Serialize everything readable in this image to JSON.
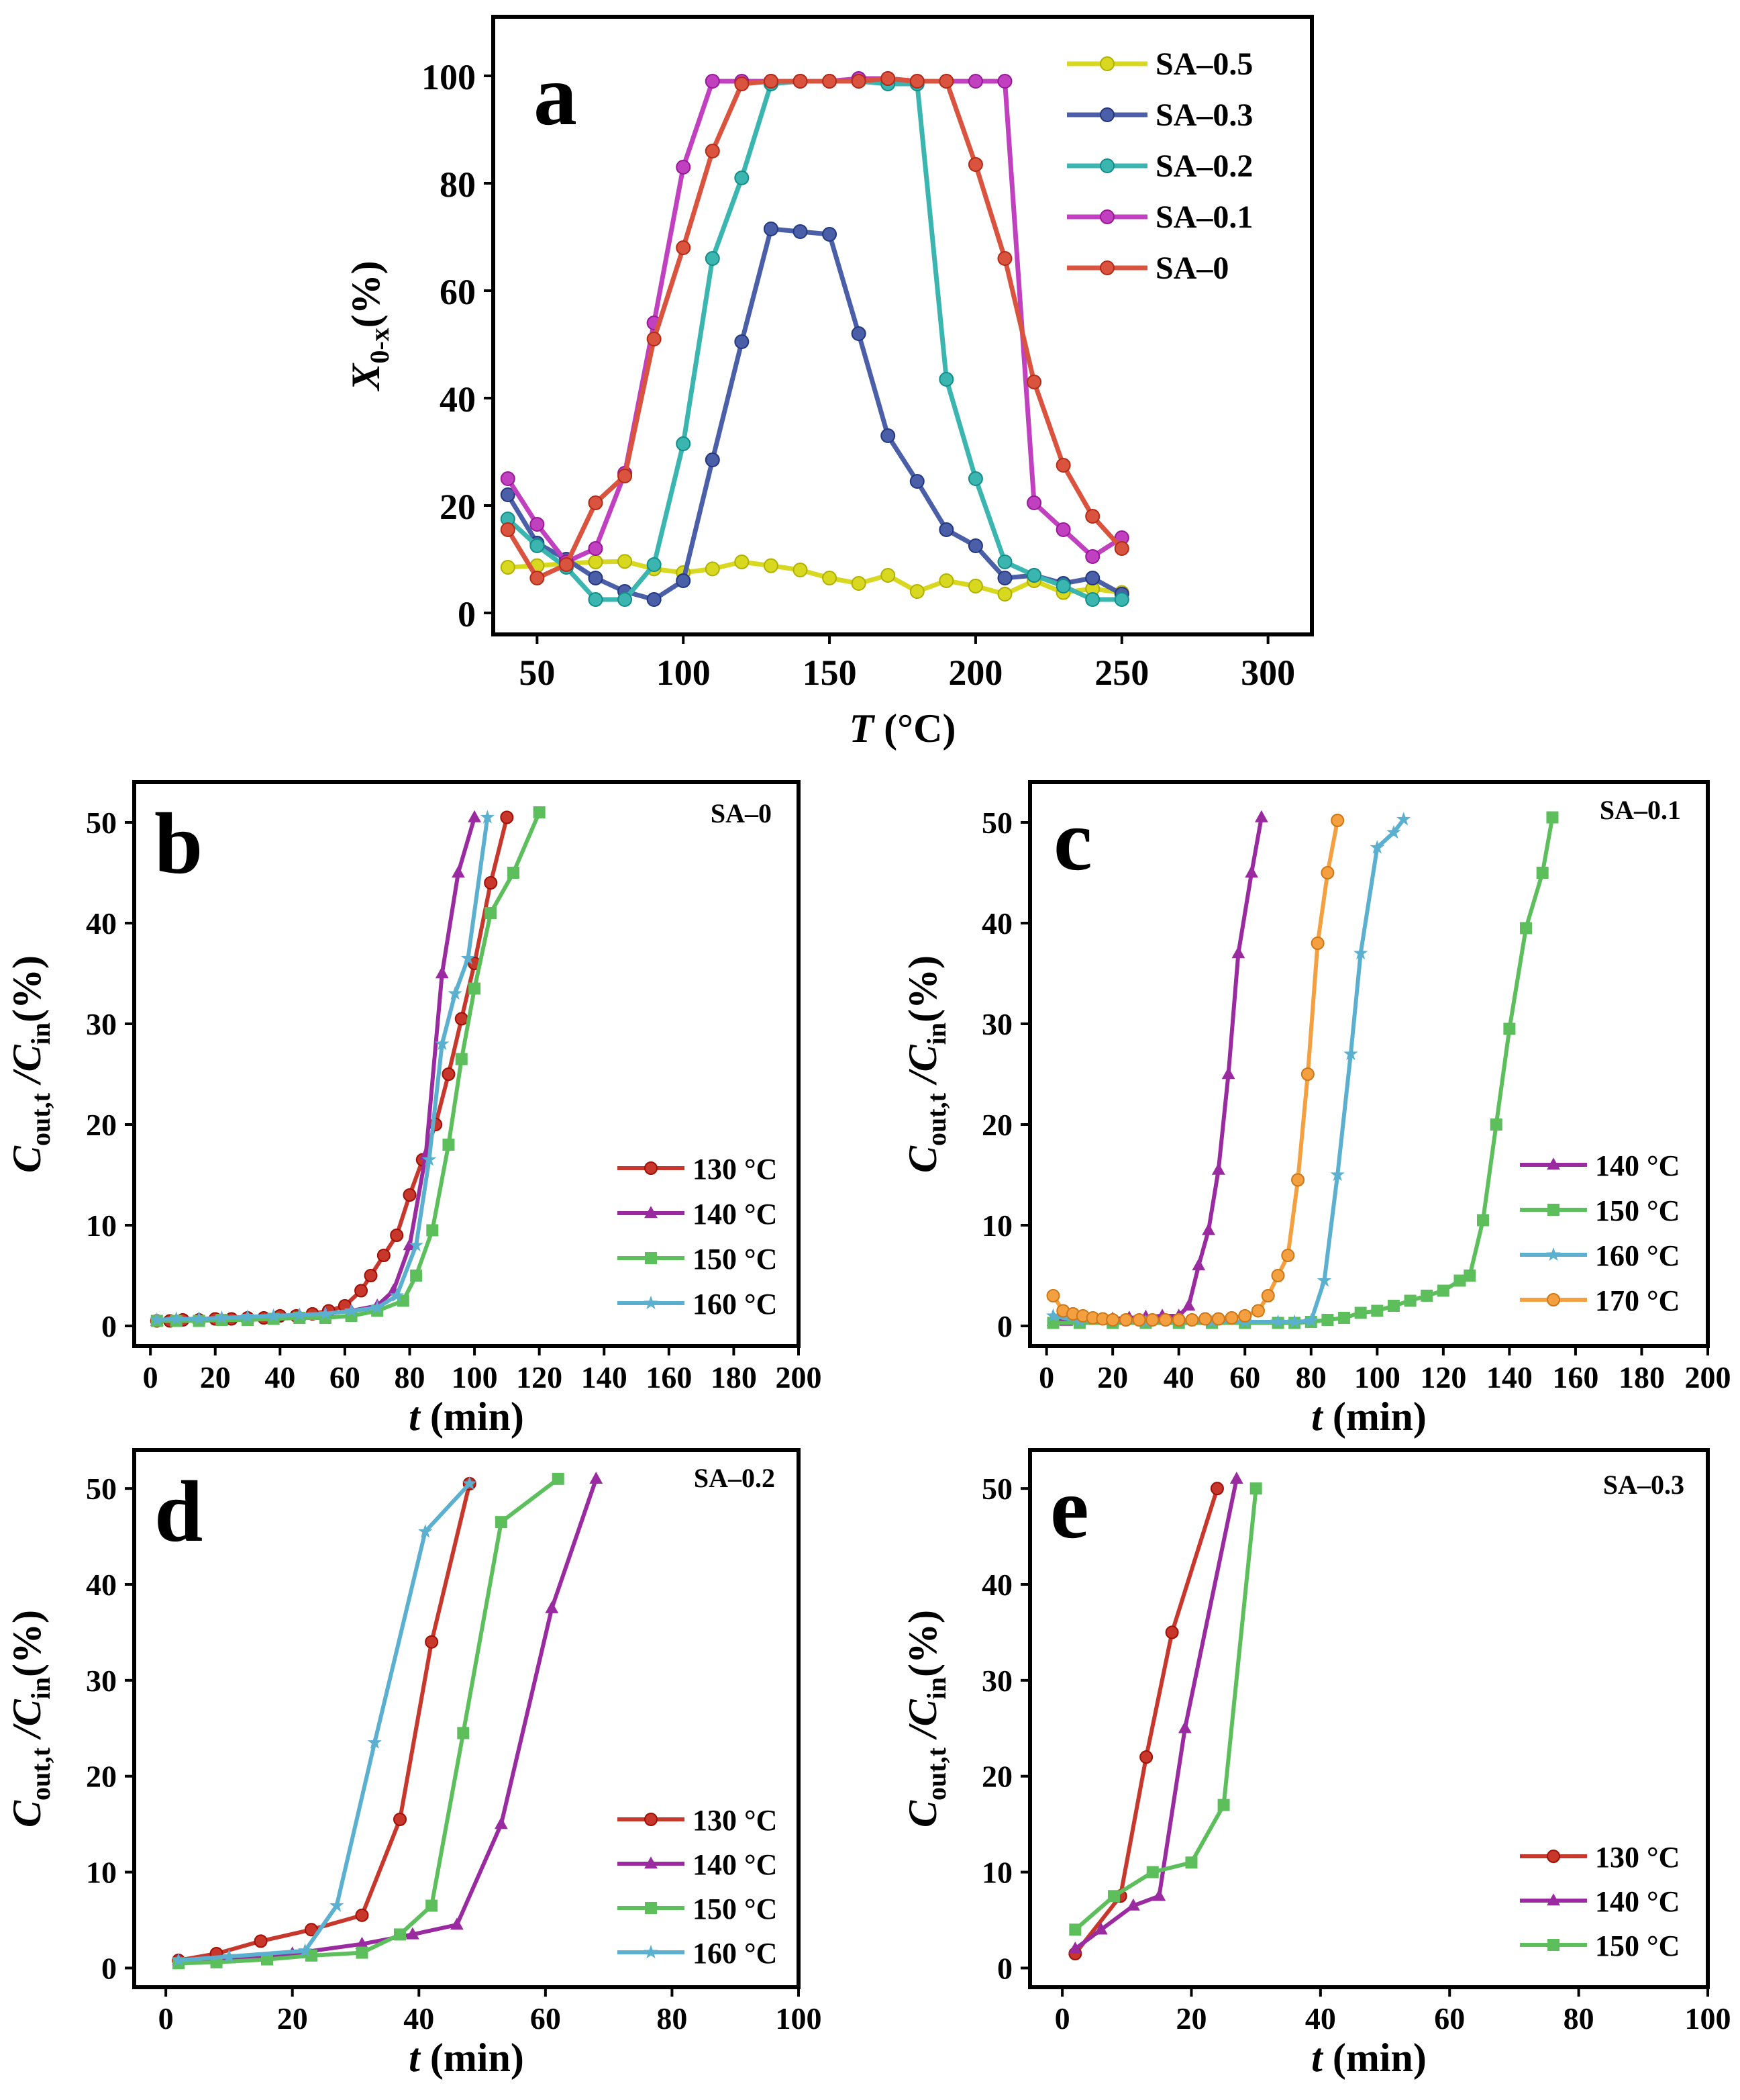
{
  "chart_data": [
    {
      "id": "a",
      "type": "line",
      "panel_letter": "a",
      "tag": "",
      "xlabel_italic": "T",
      "xlabel_rest": " (°C)",
      "ylabel_main": "X",
      "ylabel_sub": "0-x",
      "ylabel_rest": "(%)",
      "xlim": [
        35,
        315
      ],
      "ylim": [
        -4,
        111
      ],
      "xticks": [
        50,
        100,
        150,
        200,
        250,
        300
      ],
      "yticks": [
        0,
        20,
        40,
        60,
        80,
        100
      ],
      "legend_position": "top-right",
      "series": [
        {
          "name": "SA–0.5",
          "color": "#d8d820",
          "marker": "circle",
          "x": [
            40,
            50,
            60,
            70,
            80,
            90,
            100,
            110,
            120,
            130,
            140,
            150,
            160,
            170,
            180,
            190,
            200,
            210,
            220,
            230,
            240,
            250
          ],
          "y": [
            8.5,
            8.8,
            9.2,
            9.5,
            9.6,
            8.2,
            7.5,
            8.2,
            9.5,
            8.8,
            8.0,
            6.5,
            5.5,
            7.0,
            4.0,
            6.0,
            5.0,
            3.5,
            6.0,
            3.8,
            4.5,
            3.8
          ]
        },
        {
          "name": "SA–0.3",
          "color": "#4a5fa8",
          "marker": "circle",
          "x": [
            40,
            50,
            60,
            70,
            80,
            90,
            100,
            110,
            120,
            130,
            140,
            150,
            160,
            170,
            180,
            190,
            200,
            210,
            220,
            230,
            240,
            250
          ],
          "y": [
            22,
            13,
            10,
            6.5,
            4.0,
            2.5,
            6.0,
            28.5,
            50.5,
            71.5,
            71.0,
            70.5,
            52,
            33,
            24.5,
            15.5,
            12.5,
            6.5,
            7.0,
            5.5,
            6.5,
            3.5
          ]
        },
        {
          "name": "SA–0.2",
          "color": "#3ab5b0",
          "marker": "circle",
          "x": [
            40,
            50,
            60,
            70,
            80,
            90,
            100,
            110,
            120,
            130,
            140,
            150,
            160,
            170,
            180,
            190,
            200,
            210,
            220,
            230,
            240,
            250
          ],
          "y": [
            17.5,
            12.5,
            8.5,
            2.5,
            2.5,
            9.0,
            31.5,
            66,
            81,
            98.5,
            99,
            99,
            99,
            98.5,
            98.5,
            43.5,
            25,
            9.5,
            7.0,
            5.0,
            2.5,
            2.5
          ]
        },
        {
          "name": "SA–0.1",
          "color": "#c040c0",
          "marker": "circle",
          "x": [
            40,
            50,
            60,
            70,
            80,
            90,
            100,
            110,
            120,
            130,
            140,
            150,
            160,
            170,
            180,
            190,
            200,
            210,
            220,
            230,
            240,
            250
          ],
          "y": [
            25,
            16.5,
            9.5,
            12,
            26,
            54,
            83,
            99,
            99,
            99,
            99,
            99,
            99.5,
            99.5,
            99,
            99,
            99,
            99,
            20.5,
            15.5,
            10.5,
            14
          ]
        },
        {
          "name": "SA–0",
          "color": "#d9533f",
          "marker": "circle",
          "x": [
            40,
            50,
            60,
            70,
            80,
            90,
            100,
            110,
            120,
            130,
            140,
            150,
            160,
            170,
            180,
            190,
            200,
            210,
            220,
            230,
            240,
            250
          ],
          "y": [
            15.5,
            6.5,
            9.0,
            20.5,
            25.5,
            51,
            68,
            86,
            98.5,
            99,
            99,
            99,
            99,
            99.5,
            99,
            99,
            83.5,
            66,
            43,
            27.5,
            18,
            12
          ]
        }
      ]
    },
    {
      "id": "b",
      "type": "line",
      "panel_letter": "b",
      "tag": "SA–0",
      "xlabel_italic": "t",
      "xlabel_rest": " (min)",
      "ylabel_main": "C",
      "ylabel_sub": "out,t",
      "ylabel_mid": " /C",
      "ylabel_sub2": "in",
      "ylabel_rest": "(%)",
      "xlim": [
        -5,
        200
      ],
      "ylim": [
        -2,
        54
      ],
      "xticks": [
        0,
        20,
        40,
        60,
        80,
        100,
        120,
        140,
        160,
        180,
        200
      ],
      "yticks": [
        0,
        10,
        20,
        30,
        40,
        50
      ],
      "legend_position": "center-right",
      "series": [
        {
          "name": "130 °C",
          "color": "#c8372c",
          "marker": "circle",
          "x": [
            2,
            6,
            10,
            15,
            20,
            25,
            30,
            35,
            40,
            45,
            50,
            55,
            60,
            65,
            68,
            72,
            76,
            80,
            84,
            88,
            92,
            96,
            100,
            105,
            110
          ],
          "y": [
            0.5,
            0.5,
            0.6,
            0.6,
            0.7,
            0.7,
            0.8,
            0.8,
            1.0,
            1.0,
            1.2,
            1.5,
            2.0,
            3.5,
            5.0,
            7.0,
            9.0,
            13,
            16.5,
            20,
            25,
            30.5,
            36,
            44,
            50.5
          ]
        },
        {
          "name": "140 °C",
          "color": "#9a2aa0",
          "marker": "triangle",
          "x": [
            2,
            8,
            15,
            22,
            30,
            38,
            46,
            54,
            62,
            70,
            75,
            80,
            85,
            90,
            95,
            100
          ],
          "y": [
            0.5,
            0.6,
            0.7,
            0.7,
            0.8,
            0.9,
            1.0,
            1.2,
            1.5,
            2.0,
            3.5,
            8.0,
            17,
            35,
            45,
            50.5
          ]
        },
        {
          "name": "150 °C",
          "color": "#5cbf5c",
          "marker": "square",
          "x": [
            2,
            8,
            15,
            22,
            30,
            38,
            46,
            54,
            62,
            70,
            78,
            82,
            87,
            92,
            96,
            100,
            105,
            112,
            120
          ],
          "y": [
            0.5,
            0.5,
            0.5,
            0.6,
            0.6,
            0.7,
            0.8,
            0.8,
            1.0,
            1.5,
            2.5,
            5.0,
            9.5,
            18,
            26.5,
            33.5,
            41,
            45,
            51
          ]
        },
        {
          "name": "160 °C",
          "color": "#5bb0d0",
          "marker": "star",
          "x": [
            2,
            8,
            15,
            22,
            30,
            38,
            46,
            54,
            62,
            70,
            76,
            82,
            86,
            90,
            94,
            98,
            104
          ],
          "y": [
            0.6,
            0.7,
            0.7,
            0.8,
            0.9,
            1.0,
            1.1,
            1.2,
            1.5,
            1.8,
            3.0,
            8.0,
            16.5,
            28,
            33,
            36.5,
            50.5
          ]
        }
      ]
    },
    {
      "id": "c",
      "type": "line",
      "panel_letter": "c",
      "tag": "SA–0.1",
      "xlabel_italic": "t",
      "xlabel_rest": " (min)",
      "ylabel_main": "C",
      "ylabel_sub": "out,t",
      "ylabel_mid": " /C",
      "ylabel_sub2": "in",
      "ylabel_rest": "(%)",
      "xlim": [
        -5,
        200
      ],
      "ylim": [
        -2,
        54
      ],
      "xticks": [
        0,
        20,
        40,
        60,
        80,
        100,
        120,
        140,
        160,
        180,
        200
      ],
      "yticks": [
        0,
        10,
        20,
        30,
        40,
        50
      ],
      "legend_position": "center-right",
      "series": [
        {
          "name": "140 °C",
          "color": "#9a2aa0",
          "marker": "triangle",
          "x": [
            2,
            6,
            10,
            15,
            20,
            25,
            30,
            35,
            40,
            43,
            46,
            49,
            52,
            55,
            58,
            62,
            65
          ],
          "y": [
            0.5,
            0.5,
            0.6,
            0.6,
            0.7,
            0.8,
            0.9,
            1.0,
            1.0,
            2.0,
            6.0,
            9.5,
            15.5,
            25,
            37,
            45,
            50.5
          ]
        },
        {
          "name": "150 °C",
          "color": "#5cbf5c",
          "marker": "square",
          "x": [
            2,
            10,
            20,
            30,
            40,
            50,
            60,
            70,
            75,
            80,
            85,
            90,
            95,
            100,
            105,
            110,
            115,
            120,
            125,
            128,
            132,
            136,
            140,
            145,
            150,
            153
          ],
          "y": [
            0.3,
            0.3,
            0.3,
            0.3,
            0.3,
            0.3,
            0.3,
            0.3,
            0.3,
            0.4,
            0.6,
            0.8,
            1.3,
            1.5,
            2.0,
            2.5,
            3.0,
            3.5,
            4.5,
            5.0,
            10.5,
            20,
            29.5,
            39.5,
            45,
            50.5
          ]
        },
        {
          "name": "160 °C",
          "color": "#5bb0d0",
          "marker": "star",
          "x": [
            2,
            10,
            20,
            30,
            40,
            50,
            60,
            70,
            75,
            80,
            84,
            88,
            92,
            95,
            100,
            105,
            108
          ],
          "y": [
            1.0,
            0.5,
            0.5,
            0.4,
            0.4,
            0.4,
            0.4,
            0.4,
            0.4,
            0.5,
            4.5,
            15,
            27,
            37,
            47.5,
            49,
            50.3
          ]
        },
        {
          "name": "170 °C",
          "color": "#f5a040",
          "marker": "circle",
          "x": [
            2,
            5,
            8,
            11,
            14,
            17,
            20,
            24,
            28,
            32,
            36,
            40,
            44,
            48,
            52,
            56,
            60,
            64,
            67,
            70,
            73,
            76,
            79,
            82,
            85,
            88
          ],
          "y": [
            3.0,
            1.5,
            1.2,
            1.0,
            0.8,
            0.7,
            0.6,
            0.6,
            0.6,
            0.6,
            0.6,
            0.6,
            0.6,
            0.7,
            0.7,
            0.8,
            1.0,
            1.5,
            3.0,
            5.0,
            7.0,
            14.5,
            25,
            38,
            45,
            50.2
          ]
        }
      ]
    },
    {
      "id": "d",
      "type": "line",
      "panel_letter": "d",
      "tag": "SA–0.2",
      "xlabel_italic": "t",
      "xlabel_rest": " (min)",
      "ylabel_main": "C",
      "ylabel_sub": "out,t",
      "ylabel_mid": " /C",
      "ylabel_sub2": "in",
      "ylabel_rest": "(%)",
      "xlim": [
        -5,
        100
      ],
      "ylim": [
        -2,
        54
      ],
      "xticks": [
        0,
        20,
        40,
        60,
        80,
        100
      ],
      "yticks": [
        0,
        10,
        20,
        30,
        40,
        50
      ],
      "legend_position": "center-right",
      "series": [
        {
          "name": "130 °C",
          "color": "#c8372c",
          "marker": "circle",
          "x": [
            2,
            8,
            15,
            23,
            31,
            37,
            42,
            48
          ],
          "y": [
            0.8,
            1.5,
            2.8,
            4.0,
            5.5,
            15.5,
            34,
            50.5
          ]
        },
        {
          "name": "140 °C",
          "color": "#9a2aa0",
          "marker": "triangle",
          "x": [
            2,
            10,
            20,
            31,
            39,
            46,
            53,
            61,
            68
          ],
          "y": [
            0.8,
            1.0,
            1.5,
            2.5,
            3.5,
            4.5,
            15,
            37.5,
            51
          ]
        },
        {
          "name": "150 °C",
          "color": "#5cbf5c",
          "marker": "square",
          "x": [
            2,
            8,
            16,
            23,
            31,
            37,
            42,
            47,
            53,
            62
          ],
          "y": [
            0.5,
            0.6,
            0.9,
            1.3,
            1.6,
            3.5,
            6.5,
            24.5,
            46.5,
            51
          ]
        },
        {
          "name": "160 °C",
          "color": "#5bb0d0",
          "marker": "star",
          "x": [
            2,
            10,
            22,
            27,
            33,
            41,
            48
          ],
          "y": [
            0.8,
            1.2,
            1.8,
            6.5,
            23.5,
            45.5,
            50.5
          ]
        }
      ]
    },
    {
      "id": "e",
      "type": "line",
      "panel_letter": "e",
      "tag": "SA–0.3",
      "xlabel_italic": "t",
      "xlabel_rest": " (min)",
      "ylabel_main": "C",
      "ylabel_sub": "out,t",
      "ylabel_mid": " /C",
      "ylabel_sub2": "in",
      "ylabel_rest": "(%)",
      "xlim": [
        -5,
        100
      ],
      "ylim": [
        -2,
        54
      ],
      "xticks": [
        0,
        20,
        40,
        60,
        80,
        100
      ],
      "yticks": [
        0,
        10,
        20,
        30,
        40,
        50
      ],
      "legend_position": "center-right",
      "series": [
        {
          "name": "130 °C",
          "color": "#c8372c",
          "marker": "circle",
          "x": [
            2,
            9,
            13,
            17,
            24
          ],
          "y": [
            1.5,
            7.5,
            22,
            35,
            50
          ]
        },
        {
          "name": "140 °C",
          "color": "#9a2aa0",
          "marker": "triangle",
          "x": [
            2,
            6,
            11,
            15,
            19,
            27
          ],
          "y": [
            2.0,
            4.0,
            6.5,
            7.5,
            25,
            51
          ]
        },
        {
          "name": "150 °C",
          "color": "#5cbf5c",
          "marker": "square",
          "x": [
            2,
            8,
            14,
            20,
            25,
            30
          ],
          "y": [
            4.0,
            7.5,
            10,
            11,
            17,
            50
          ]
        }
      ]
    }
  ]
}
